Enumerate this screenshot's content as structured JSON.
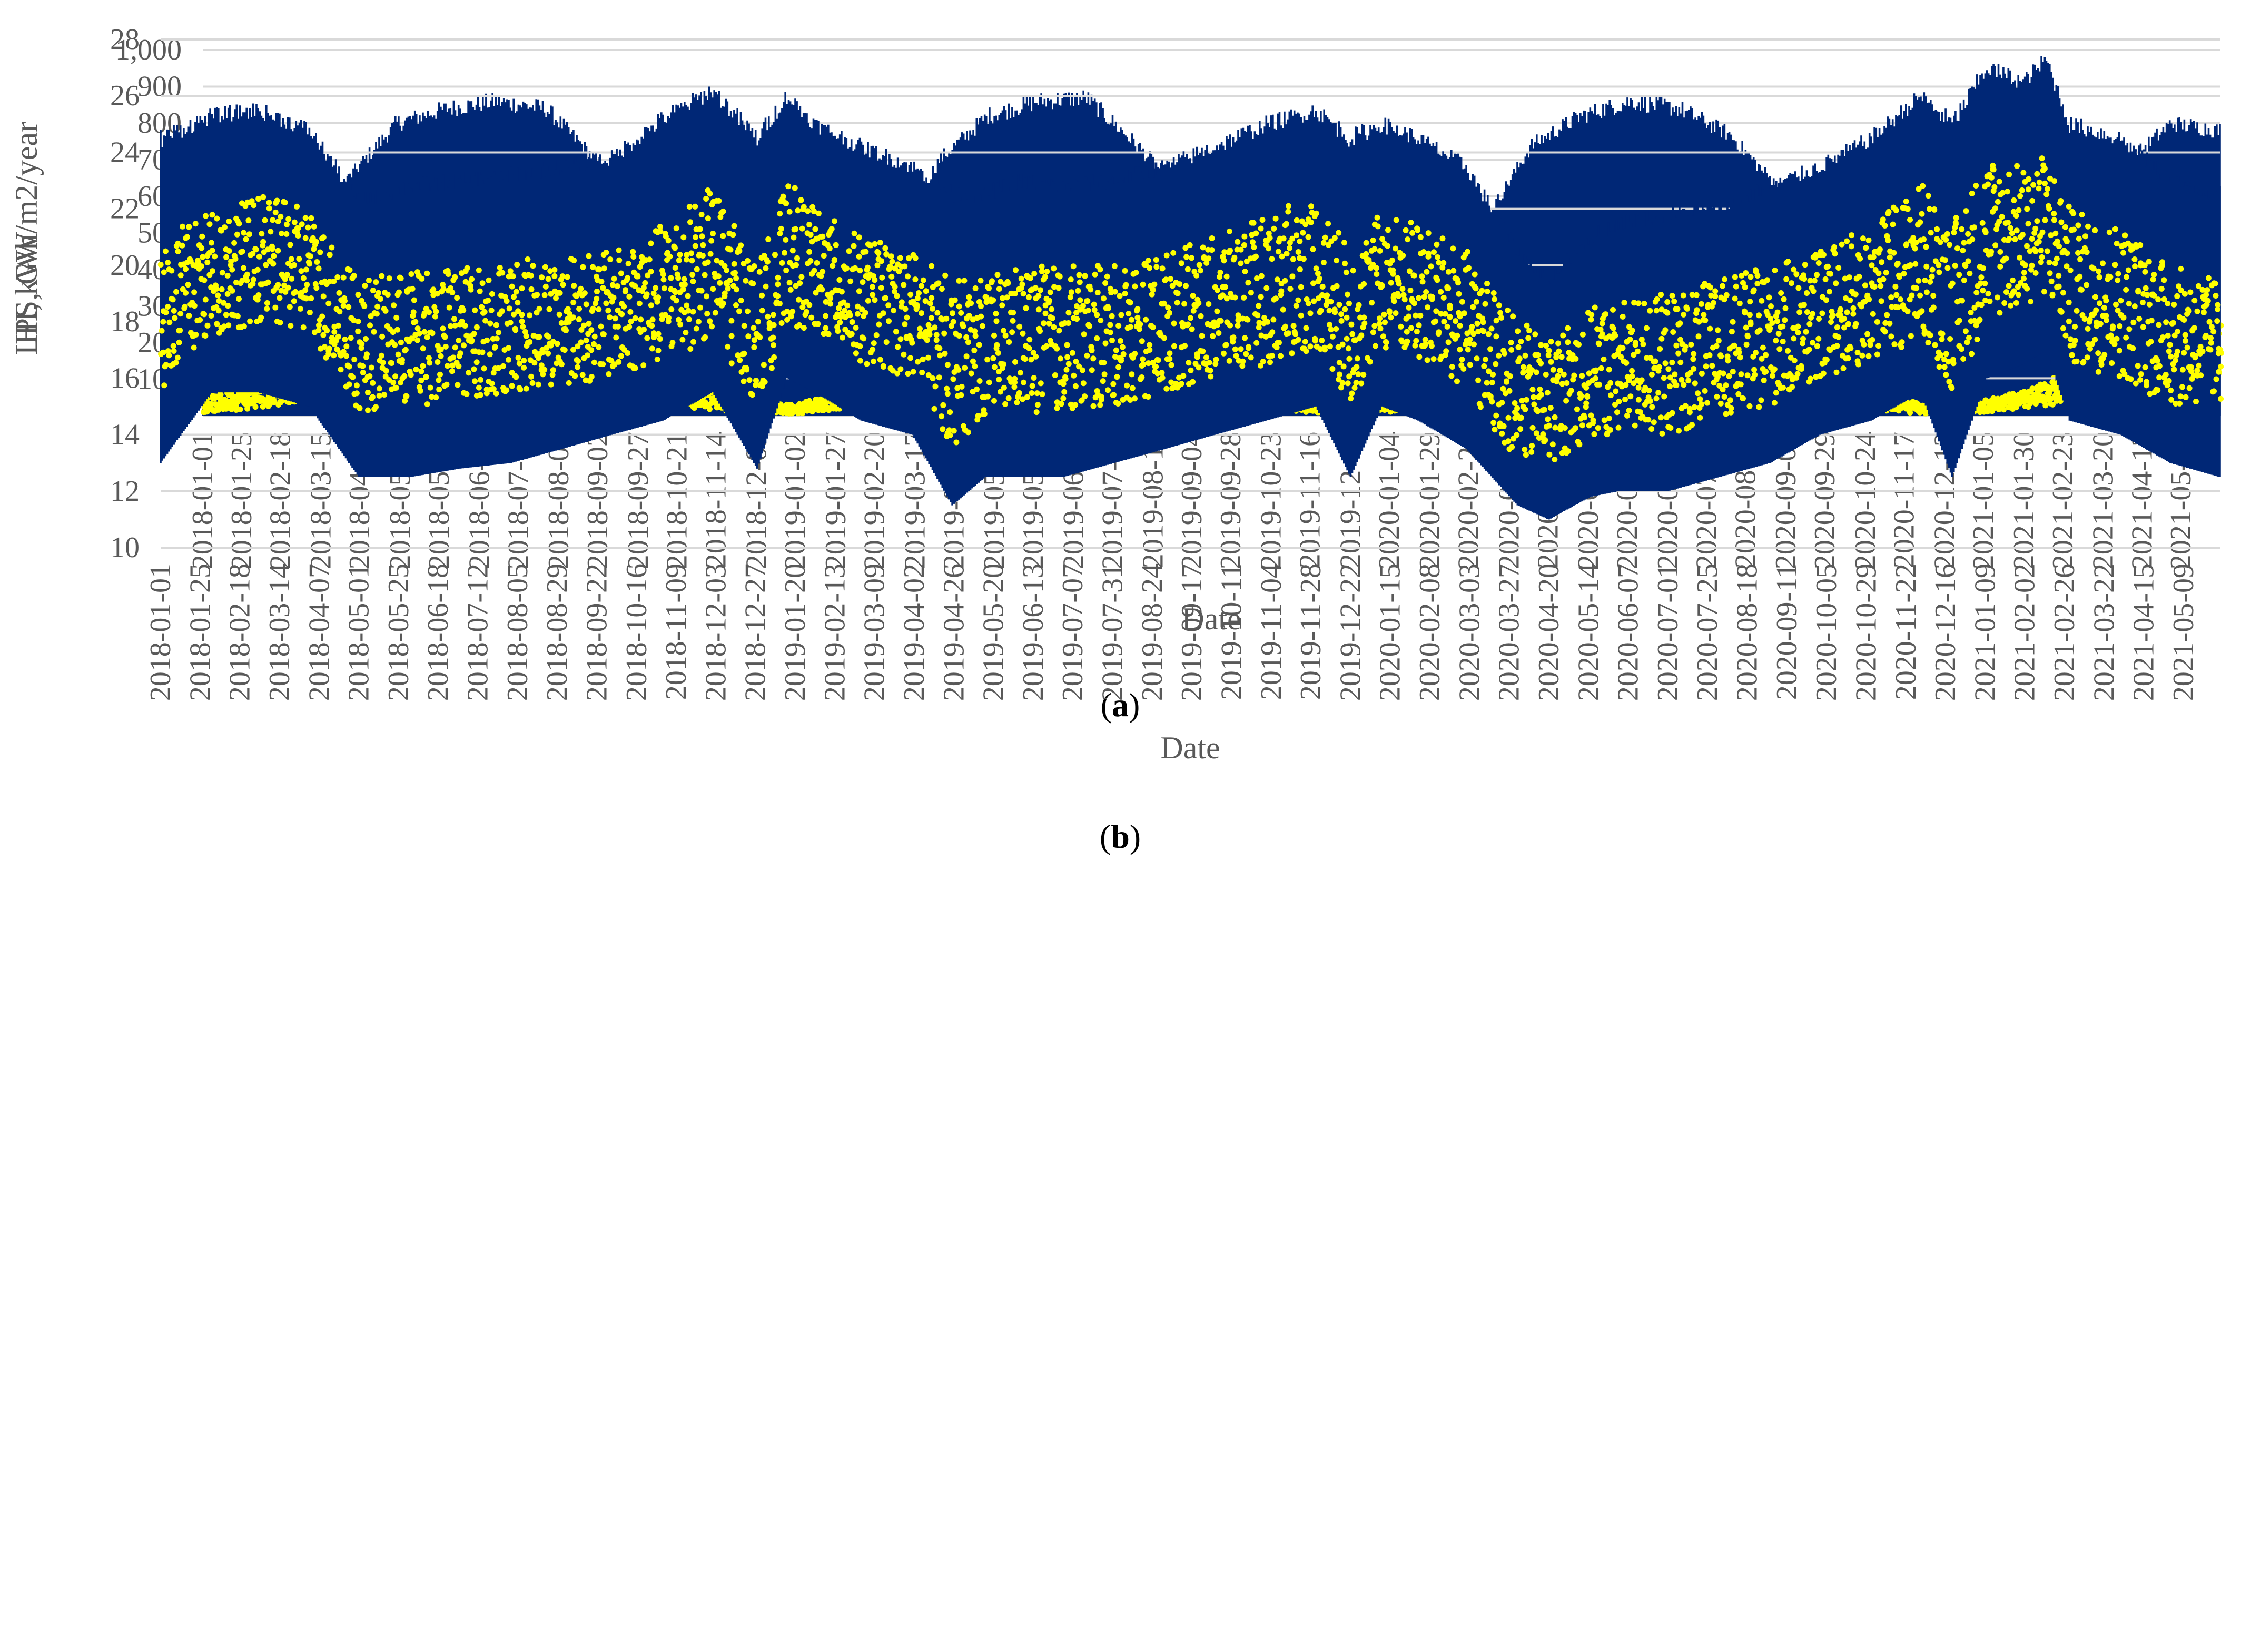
{
  "chart_data": [
    {
      "type": "line",
      "caption_letter": "a",
      "title": "",
      "xlabel": "Date",
      "ylabel": "HI, kWh/m2/year",
      "ylim": [
        0,
        1000
      ],
      "yticks": [
        "-",
        "100",
        "200",
        "300",
        "400",
        "500",
        "600",
        "700",
        "800",
        "900",
        "1,000"
      ],
      "xticks": [
        "2018-01-01",
        "2018-01-25",
        "2018-02-18",
        "2018-03-15",
        "2018-04-08",
        "2018-05-03",
        "2018-05-27",
        "2018-06-21",
        "2018-07-15",
        "2018-08-09",
        "2018-09-02",
        "2018-09-27",
        "2018-10-21",
        "2018-11-14",
        "2018-12-09",
        "2019-01-02",
        "2019-01-27",
        "2019-02-20",
        "2019-03-17",
        "2019-04-10",
        "2019-05-05",
        "2019-05-29",
        "2019-06-23",
        "2019-07-17",
        "2019-08-11",
        "2019-09-04",
        "2019-09-28",
        "2019-10-23",
        "2019-11-16",
        "2019-12-11",
        "2020-01-04",
        "2020-01-29",
        "2020-02-22",
        "2020-03-18",
        "2020-04-11",
        "2020-05-06",
        "2020-05-30",
        "2020-06-24",
        "2020-07-18",
        "2020-08-11",
        "2020-09-05",
        "2020-09-29",
        "2020-10-24",
        "2020-11-17",
        "2020-12-12",
        "2021-01-05",
        "2021-01-30",
        "2021-02-23",
        "2021-03-20",
        "2021-04-13",
        "2021-05-07"
      ],
      "x_range": [
        "2018-01-01",
        "2021-05-31"
      ],
      "grid": true,
      "legend": "none",
      "series": [
        {
          "style": "dense vertical band (area between daily min and max)",
          "color": "#002776",
          "x": [
            "2018-01-01",
            "2018-02-01",
            "2018-03-01",
            "2018-04-01",
            "2018-05-01",
            "2018-06-01",
            "2018-07-01",
            "2018-08-01",
            "2018-09-01",
            "2018-10-01",
            "2018-11-01",
            "2018-12-01",
            "2019-01-01",
            "2019-02-01",
            "2019-03-01",
            "2019-04-01",
            "2019-05-01",
            "2019-06-01",
            "2019-07-01",
            "2019-08-01",
            "2019-09-01",
            "2019-10-01",
            "2019-11-01",
            "2019-12-01",
            "2020-01-01",
            "2020-02-01",
            "2020-03-01",
            "2020-04-01",
            "2020-05-01",
            "2020-06-01",
            "2020-07-01",
            "2020-08-01",
            "2020-09-01",
            "2020-10-01",
            "2020-11-01",
            "2020-12-01",
            "2021-01-01",
            "2021-02-01",
            "2021-03-01",
            "2021-04-01",
            "2021-05-01",
            "2021-05-31"
          ],
          "upper": [
            200,
            270,
            420,
            650,
            800,
            840,
            860,
            840,
            700,
            560,
            360,
            230,
            200,
            260,
            460,
            700,
            820,
            860,
            870,
            740,
            600,
            420,
            270,
            210,
            250,
            330,
            520,
            740,
            820,
            860,
            840,
            770,
            620,
            420,
            300,
            240,
            260,
            320,
            480,
            680,
            800,
            780
          ],
          "lower": [
            0,
            0,
            0,
            0,
            0,
            0,
            0,
            0,
            0,
            0,
            0,
            0,
            0,
            0,
            0,
            0,
            0,
            0,
            0,
            0,
            0,
            0,
            0,
            0,
            0,
            0,
            0,
            0,
            0,
            0,
            0,
            0,
            0,
            0,
            0,
            0,
            0,
            0,
            0,
            0,
            0,
            0
          ]
        },
        {
          "style": "yellow markers (daily values)",
          "color": "#FFFF00",
          "x": [
            "2018-01-01",
            "2018-02-01",
            "2018-03-01",
            "2018-04-01",
            "2018-05-01",
            "2018-06-01",
            "2018-07-01",
            "2018-08-01",
            "2018-09-01",
            "2018-10-01",
            "2018-11-01",
            "2018-12-01",
            "2019-01-01",
            "2019-02-01",
            "2019-03-01",
            "2019-04-01",
            "2019-05-01",
            "2019-06-01",
            "2019-07-01",
            "2019-08-01",
            "2019-09-01",
            "2019-10-01",
            "2019-11-01",
            "2019-12-01",
            "2020-01-01",
            "2020-02-01",
            "2020-03-01",
            "2020-04-01",
            "2020-05-01",
            "2020-06-01",
            "2020-07-01",
            "2020-08-01",
            "2020-09-01",
            "2020-10-01",
            "2020-11-01",
            "2020-12-01",
            "2021-01-01",
            "2021-02-01",
            "2021-03-01",
            "2021-04-01",
            "2021-05-01",
            "2021-05-31"
          ],
          "upper": [
            50,
            80,
            140,
            220,
            270,
            300,
            300,
            280,
            220,
            170,
            90,
            40,
            30,
            70,
            130,
            200,
            260,
            290,
            300,
            240,
            170,
            120,
            60,
            30,
            40,
            70,
            150,
            220,
            280,
            290,
            280,
            260,
            190,
            110,
            60,
            30,
            40,
            70,
            130,
            190,
            250,
            260
          ],
          "lower": [
            10,
            20,
            40,
            80,
            100,
            110,
            110,
            100,
            70,
            50,
            20,
            10,
            5,
            20,
            40,
            70,
            100,
            110,
            120,
            90,
            60,
            40,
            15,
            5,
            10,
            20,
            50,
            80,
            100,
            110,
            100,
            90,
            60,
            30,
            15,
            5,
            10,
            20,
            40,
            70,
            100,
            100
          ]
        }
      ]
    },
    {
      "type": "line",
      "caption_letter": "b",
      "title": "",
      "xlabel": "Date",
      "ylabel": "LPS, GW",
      "ylim": [
        10,
        28
      ],
      "yticks": [
        "10",
        "12",
        "14",
        "16",
        "18",
        "20",
        "22",
        "24",
        "26",
        "28"
      ],
      "xticks": [
        "2018-01-01",
        "2018-01-25",
        "2018-02-18",
        "2018-03-14",
        "2018-04-07",
        "2018-05-01",
        "2018-05-25",
        "2018-06-18",
        "2018-07-12",
        "2018-08-05",
        "2018-08-29",
        "2018-09-22",
        "2018-10-16",
        "2018-11-09",
        "2018-12-03",
        "2018-12-27",
        "2019-01-20",
        "2019-02-13",
        "2019-03-09",
        "2019-04-02",
        "2019-04-26",
        "2019-05-20",
        "2019-06-13",
        "2019-07-07",
        "2019-07-31",
        "2019-08-24",
        "2019-09-17",
        "2019-10-11",
        "2019-11-04",
        "2019-11-28",
        "2019-12-22",
        "2020-01-15",
        "2020-02-08",
        "2020-03-03",
        "2020-03-27",
        "2020-04-20",
        "2020-05-14",
        "2020-06-07",
        "2020-07-01",
        "2020-07-25",
        "2020-08-18",
        "2020-09-11",
        "2020-10-05",
        "2020-10-29",
        "2020-11-22",
        "2020-12-16",
        "2021-01-09",
        "2021-02-02",
        "2021-02-26",
        "2021-03-22",
        "2021-04-15",
        "2021-05-09"
      ],
      "x_range": [
        "2018-01-01",
        "2021-05-31"
      ],
      "grid": true,
      "legend": "none",
      "series": [
        {
          "style": "dense vertical band (area between daily min and max)",
          "color": "#002776",
          "x": [
            "2018-01-01",
            "2018-02-01",
            "2018-03-01",
            "2018-04-01",
            "2018-05-01",
            "2018-06-01",
            "2018-07-01",
            "2018-08-01",
            "2018-09-01",
            "2018-10-01",
            "2018-11-01",
            "2018-12-01",
            "2018-12-28",
            "2019-01-15",
            "2019-02-01",
            "2019-03-01",
            "2019-04-01",
            "2019-04-25",
            "2019-05-15",
            "2019-06-01",
            "2019-07-01",
            "2019-08-01",
            "2019-09-01",
            "2019-10-01",
            "2019-11-01",
            "2019-12-01",
            "2019-12-22",
            "2020-01-10",
            "2020-02-01",
            "2020-03-01",
            "2020-04-01",
            "2020-04-20",
            "2020-05-15",
            "2020-06-01",
            "2020-07-01",
            "2020-08-01",
            "2020-09-01",
            "2020-10-01",
            "2020-11-01",
            "2020-12-01",
            "2020-12-20",
            "2021-01-10",
            "2021-02-01",
            "2021-02-15",
            "2021-03-01",
            "2021-04-01",
            "2021-05-01",
            "2021-05-31"
          ],
          "upper": [
            24.5,
            25.3,
            25.5,
            24.8,
            22.3,
            22.8,
            23.0,
            23.2,
            23.5,
            23.8,
            25.2,
            26.2,
            24.5,
            26.0,
            25.0,
            24.2,
            23.5,
            22.5,
            22.5,
            23.0,
            22.8,
            23.0,
            23.5,
            24.2,
            25.0,
            25.5,
            24.5,
            25.0,
            24.5,
            23.5,
            20.5,
            19.5,
            21.0,
            21.5,
            21.8,
            22.0,
            22.8,
            23.5,
            24.5,
            26.0,
            25.0,
            27.0,
            26.5,
            27.3,
            25.0,
            24.5,
            23.0,
            22.5
          ],
          "lower": [
            13.0,
            15.5,
            15.5,
            15.0,
            12.5,
            12.5,
            12.8,
            13.0,
            13.5,
            14.0,
            14.5,
            15.5,
            12.8,
            16.0,
            15.5,
            14.5,
            14.0,
            11.5,
            12.5,
            12.5,
            12.5,
            13.0,
            13.5,
            14.0,
            14.5,
            15.0,
            12.5,
            15.0,
            14.5,
            13.5,
            11.5,
            11.0,
            11.8,
            12.0,
            12.0,
            12.5,
            13.0,
            14.0,
            14.5,
            15.5,
            12.5,
            16.0,
            16.5,
            17.0,
            14.5,
            14.0,
            13.0,
            12.5
          ]
        },
        {
          "style": "yellow markers (daily values)",
          "color": "#FFFF00",
          "x": [
            "2018-01-01",
            "2018-02-01",
            "2018-03-01",
            "2018-04-01",
            "2018-05-01",
            "2018-06-01",
            "2018-07-01",
            "2018-08-01",
            "2018-09-01",
            "2018-10-01",
            "2018-11-01",
            "2018-12-01",
            "2018-12-28",
            "2019-01-15",
            "2019-02-01",
            "2019-03-01",
            "2019-04-01",
            "2019-04-25",
            "2019-05-15",
            "2019-06-01",
            "2019-07-01",
            "2019-08-01",
            "2019-09-01",
            "2019-10-01",
            "2019-11-01",
            "2019-12-01",
            "2019-12-22",
            "2020-01-10",
            "2020-02-01",
            "2020-03-01",
            "2020-04-01",
            "2020-04-20",
            "2020-05-15",
            "2020-06-01",
            "2020-07-01",
            "2020-08-01",
            "2020-09-01",
            "2020-10-01",
            "2020-11-01",
            "2020-12-01",
            "2020-12-20",
            "2021-01-10",
            "2021-02-01",
            "2021-02-15",
            "2021-03-01",
            "2021-04-01",
            "2021-05-01",
            "2021-05-31"
          ],
          "upper": [
            21.0,
            22.0,
            22.5,
            22.0,
            19.5,
            19.8,
            20.0,
            20.2,
            20.3,
            20.5,
            21.5,
            22.8,
            20.0,
            23.0,
            22.0,
            21.0,
            20.5,
            19.5,
            19.5,
            20.0,
            20.0,
            20.0,
            20.5,
            21.0,
            21.8,
            22.5,
            20.5,
            22.0,
            21.5,
            20.5,
            18.0,
            17.5,
            18.5,
            18.8,
            19.0,
            19.5,
            20.0,
            20.5,
            21.5,
            23.0,
            21.5,
            24.0,
            23.5,
            24.0,
            22.0,
            21.5,
            20.0,
            19.5
          ],
          "lower": [
            15.5,
            17.5,
            18.0,
            17.5,
            14.8,
            15.0,
            15.2,
            15.5,
            15.8,
            16.0,
            16.5,
            17.5,
            15.0,
            18.0,
            17.5,
            16.5,
            16.0,
            13.5,
            14.8,
            14.8,
            14.8,
            15.0,
            15.5,
            16.0,
            16.5,
            17.0,
            15.0,
            17.0,
            16.5,
            15.5,
            13.0,
            13.0,
            13.8,
            14.0,
            14.0,
            14.5,
            15.0,
            16.0,
            16.5,
            17.5,
            15.5,
            18.0,
            18.5,
            19.0,
            16.5,
            16.0,
            15.0,
            15.0
          ]
        }
      ]
    }
  ]
}
